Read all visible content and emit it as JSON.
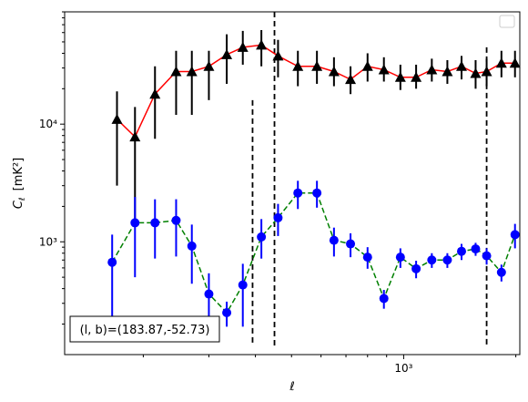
{
  "chart_data": {
    "type": "scatter",
    "title": "",
    "xlabel": "ℓ",
    "ylabel_main": "C",
    "ylabel_sub": "ℓ",
    "ylabel_unit": "[mK²]",
    "xscale": "log",
    "yscale": "log",
    "xlim": [
      123,
      2050
    ],
    "ylim": [
      110,
      90000
    ],
    "x_tick_labels": [
      {
        "value": 1000,
        "label": "10³"
      }
    ],
    "y_tick_labels": [
      {
        "value": 1000,
        "label": "10³"
      },
      {
        "value": 10000,
        "label": "10⁴"
      }
    ],
    "annotation": "(l, b)=(183.87,-52.73)",
    "legend": {
      "placement": "top-right",
      "entries": []
    },
    "vlines": [
      {
        "x": 393,
        "color": "#000000",
        "style": "dashed",
        "ymin": 130,
        "ymax": 16000
      },
      {
        "x": 450,
        "color": "#000000",
        "style": "dashed",
        "ymin": 130,
        "ymax": 90000
      },
      {
        "x": 1670,
        "color": "#000000",
        "style": "dashed",
        "ymin": 130,
        "ymax": 45000
      }
    ],
    "series": [
      {
        "color": "#000000",
        "line_color": "#ff0000",
        "line_style": "solid",
        "marker": "triangle",
        "x": [
          170,
          190,
          215,
          245,
          270,
          300,
          335,
          370,
          415,
          460,
          520,
          585,
          650,
          720,
          800,
          885,
          980,
          1080,
          1190,
          1310,
          1430,
          1560,
          1670,
          1830,
          1990
        ],
        "y": [
          11000,
          7800,
          18000,
          28000,
          28000,
          31000,
          39000,
          45000,
          47000,
          38000,
          31000,
          31000,
          28000,
          24000,
          31000,
          29000,
          25000,
          25000,
          29000,
          28000,
          31000,
          27000,
          28000,
          33000,
          33000
        ],
        "y_low": [
          3000,
          1500,
          7500,
          12000,
          12000,
          16000,
          22000,
          32000,
          31000,
          25000,
          21000,
          22000,
          21000,
          18000,
          23000,
          23000,
          19500,
          20000,
          23000,
          22000,
          24000,
          20000,
          21000,
          25000,
          25000
        ],
        "y_high": [
          19000,
          14000,
          31000,
          42000,
          42000,
          42000,
          58000,
          62000,
          63000,
          52000,
          42000,
          42000,
          37000,
          31000,
          40000,
          37000,
          32000,
          32000,
          36000,
          35000,
          38000,
          35000,
          36000,
          42000,
          42000
        ]
      },
      {
        "color": "#0000ff",
        "line_color": "#008000",
        "line_style": "dashed",
        "marker": "circle",
        "x": [
          165,
          190,
          215,
          245,
          270,
          300,
          335,
          370,
          415,
          460,
          520,
          585,
          650,
          720,
          800,
          885,
          980,
          1080,
          1190,
          1310,
          1430,
          1560,
          1670,
          1830,
          1990
        ],
        "y": [
          670,
          1450,
          1450,
          1520,
          920,
          360,
          250,
          430,
          1100,
          1600,
          2600,
          2600,
          1030,
          960,
          740,
          330,
          740,
          590,
          700,
          700,
          830,
          870,
          760,
          550,
          1150
        ],
        "y_low": [
          190,
          500,
          720,
          750,
          440,
          190,
          190,
          190,
          720,
          1120,
          1900,
          1950,
          750,
          740,
          590,
          270,
          600,
          490,
          600,
          600,
          700,
          760,
          640,
          460,
          880
        ],
        "y_high": [
          1150,
          2400,
          2300,
          2300,
          1400,
          540,
          310,
          650,
          1560,
          2100,
          3300,
          3300,
          1320,
          1180,
          900,
          390,
          880,
          690,
          800,
          800,
          960,
          980,
          880,
          640,
          1420
        ]
      }
    ]
  }
}
